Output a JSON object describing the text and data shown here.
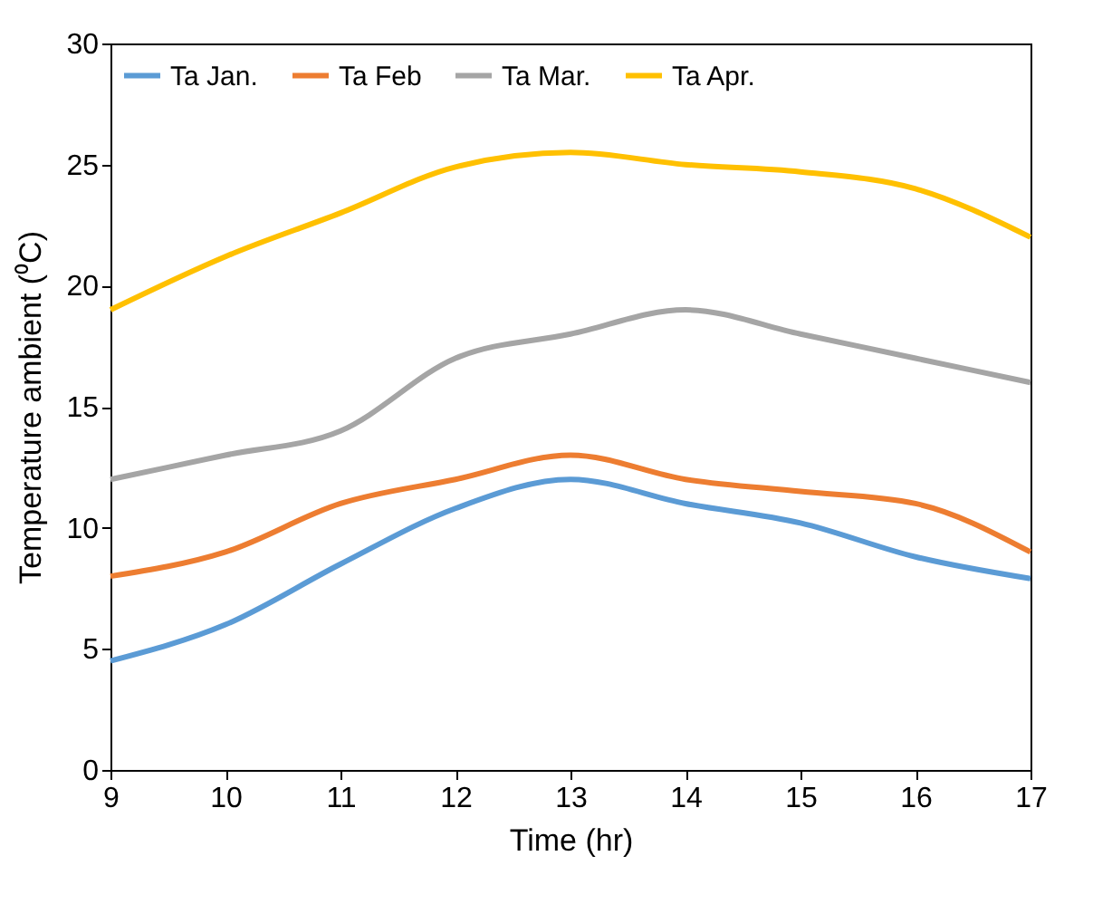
{
  "chart_data": {
    "type": "line",
    "xlabel": "Time (hr)",
    "ylabel": "Temperature ambient (⁰C)",
    "x": [
      9,
      10,
      11,
      12,
      13,
      14,
      15,
      16,
      17
    ],
    "series": [
      {
        "name": "Ta Jan.",
        "color": "#5b9bd5",
        "values": [
          4.5,
          6,
          8.5,
          10.8,
          12,
          11,
          10.2,
          8.8,
          7.9
        ]
      },
      {
        "name": "Ta Feb",
        "color": "#ed7d31",
        "values": [
          8,
          9,
          11,
          12,
          13,
          12,
          11.5,
          11,
          9
        ]
      },
      {
        "name": "Ta Mar.",
        "color": "#a5a5a5",
        "values": [
          12,
          13,
          14,
          17,
          18,
          19,
          18,
          17,
          16
        ]
      },
      {
        "name": "Ta Apr.",
        "color": "#ffc000",
        "values": [
          19,
          21.2,
          23,
          24.9,
          25.5,
          25,
          24.7,
          24,
          22
        ]
      }
    ],
    "xlim": [
      9,
      17
    ],
    "xticks": [
      9,
      10,
      11,
      12,
      13,
      14,
      15,
      16,
      17
    ],
    "ylim": [
      0,
      30
    ],
    "yticks": [
      0,
      5,
      10,
      15,
      20,
      25,
      30
    ],
    "grid": false,
    "legend": "top",
    "marker": "none",
    "line_style": "solid"
  }
}
